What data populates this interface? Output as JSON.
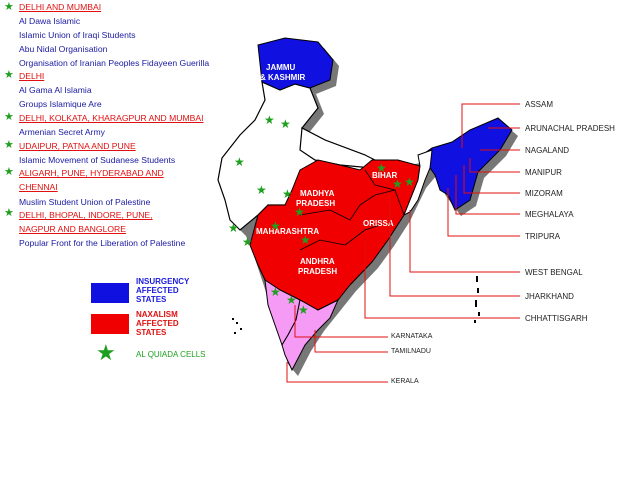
{
  "groups": [
    {
      "cities": "DELHI AND MUMBAI",
      "orgs": [
        "Al Dawa Islamic",
        "Islamic Union of Iraqi Students",
        "Abu Nidal Organisation",
        "Organisation of Iranian Peoples Fidayeen Guerilla"
      ]
    },
    {
      "cities": "DELHI",
      "orgs": [
        "Al Gama Al Islamia",
        "Groups Islamique Are"
      ]
    },
    {
      "cities": "DELHI, KOLKATA, KHARAGPUR  AND MUMBAI",
      "orgs": [
        "Armenian Secret Army"
      ]
    },
    {
      "cities": "UDAIPUR, PATNA AND PUNE",
      "orgs": [
        "Islamic Movement of Sudanese Students"
      ]
    },
    {
      "cities": "ALIGARH, PUNE, HYDERABAD AND",
      "cities2": "CHENNAI",
      "orgs": [
        "Muslim Student Union of Palestine"
      ]
    },
    {
      "cities": "DELHI, BHOPAL, INDORE, PUNE,",
      "cities2": "NAGPUR AND BANGLORE",
      "orgs": [
        "Popular Front for the Liberation of Palestine"
      ]
    }
  ],
  "map_labels": {
    "jk1": "JAMMU",
    "jk2": "& KASHMIR",
    "bihar": "BIHAR",
    "mp1": "MADHYA",
    "mp2": "PRADESH",
    "orissa": "ORISSA",
    "maha": "MAHARASHTRA",
    "ap1": "ANDHRA",
    "ap2": "PRADESH"
  },
  "state_labels": {
    "assam": "ASSAM",
    "arunachal": "ARUNACHAL PRADESH",
    "nagaland": "NAGALAND",
    "manipur": "MANIPUR",
    "mizoram": "MIZORAM",
    "meghalaya": "MEGHALAYA",
    "tripura": "TRIPURA",
    "westbengal": "WEST BENGAL",
    "jharkhand": "JHARKHAND",
    "chhattisgarh": "CHHATTISGARH",
    "karnataka": "KARNATAKA",
    "tamilnadu": "TAMILNADU",
    "kerala": "KERALA"
  },
  "legend": {
    "insurgency": [
      "INSURGENCY",
      "AFFECTED",
      "STATES"
    ],
    "naxalism": [
      "NAXALISM",
      "AFFECTED",
      "STATES"
    ],
    "alqaida": "AL QUIADA CELLS"
  },
  "colors": {
    "insurgency": "#1010e0",
    "naxalism": "#f00000",
    "karnataka": "#f59af5",
    "shadow": "#777777",
    "cells": "#1ea01e",
    "lead": "#e01010",
    "org": "#1a1aa0",
    "legend_insurgency_text": "#1a1ae0",
    "legend_naxal_text": "#e01010",
    "legend_cells_text": "#1ea01e"
  }
}
